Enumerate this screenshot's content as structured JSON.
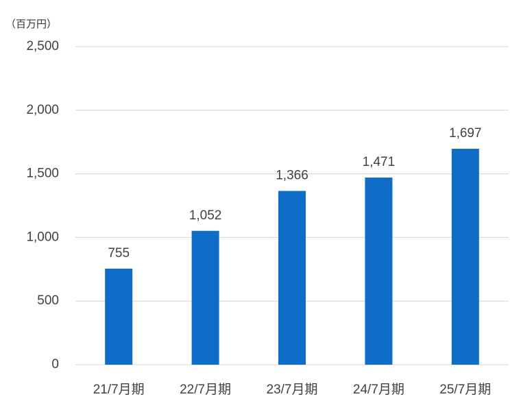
{
  "chart_data": {
    "type": "bar",
    "unit_label": "（百万円）",
    "categories": [
      "21/7月期",
      "22/7月期",
      "23/7月期",
      "24/7月期",
      "25/7月期"
    ],
    "values": [
      755,
      1052,
      1366,
      1471,
      1697
    ],
    "value_labels": [
      "755",
      "1,052",
      "1,366",
      "1,471",
      "1,697"
    ],
    "color": "#0f6dc7",
    "ylim": [
      0,
      2500
    ],
    "yticks": [
      0,
      500,
      {
        "value": 1000,
        "label": "1,000"
      },
      {
        "value": 1500,
        "label": "1,500"
      },
      {
        "value": 2000,
        "label": "2,000"
      },
      {
        "value": 2500,
        "label": "2,500"
      }
    ],
    "grid": true
  }
}
